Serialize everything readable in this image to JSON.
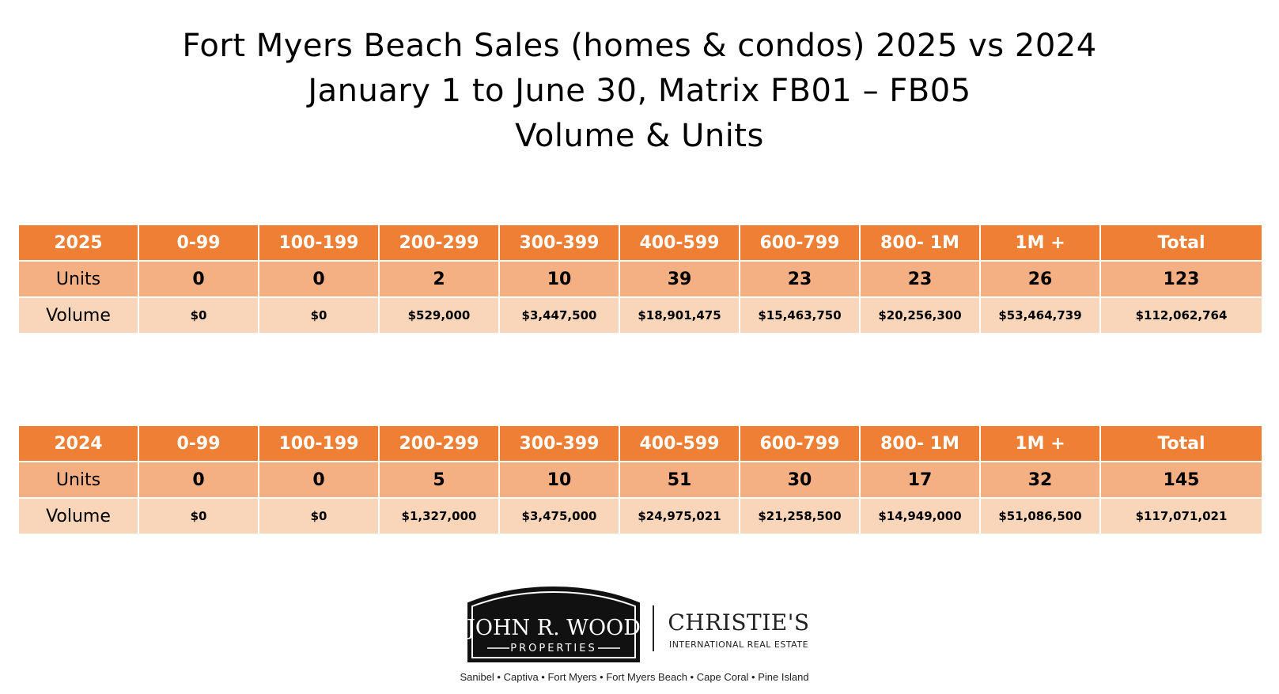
{
  "title": {
    "line1": "Fort Myers Beach Sales (homes & condos)  2025 vs 2024",
    "line2": "January 1 to June 30, Matrix FB01 – FB05",
    "line3": "Volume & Units"
  },
  "columns": [
    "0-99",
    "100-199",
    "200-299",
    "300-399",
    "400-599",
    "600-799",
    "800- 1M",
    "1M +",
    "Total"
  ],
  "row_labels": {
    "units": "Units",
    "volume": "Volume"
  },
  "table_2025": {
    "year": "2025",
    "units": [
      "0",
      "0",
      "2",
      "10",
      "39",
      "23",
      "23",
      "26",
      "123"
    ],
    "volume": [
      "$0",
      "$0",
      "$529,000",
      "$3,447,500",
      "$18,901,475",
      "$15,463,750",
      "$20,256,300",
      "$53,464,739",
      "$112,062,764"
    ]
  },
  "table_2024": {
    "year": "2024",
    "units": [
      "0",
      "0",
      "5",
      "10",
      "51",
      "30",
      "17",
      "32",
      "145"
    ],
    "volume": [
      "$0",
      "$0",
      "$1,327,000",
      "$3,475,000",
      "$24,975,021",
      "$21,258,500",
      "$14,949,000",
      "$51,086,500",
      "$117,071,021"
    ]
  },
  "logo": {
    "name": "JOHN R. WOOD",
    "sub": "PROPERTIES",
    "partner": "CHRISTIE'S",
    "partner_sub": "INTERNATIONAL REAL ESTATE",
    "locations": "Sanibel • Captiva • Fort Myers • Fort Myers Beach • Cape Coral • Pine Island"
  }
}
